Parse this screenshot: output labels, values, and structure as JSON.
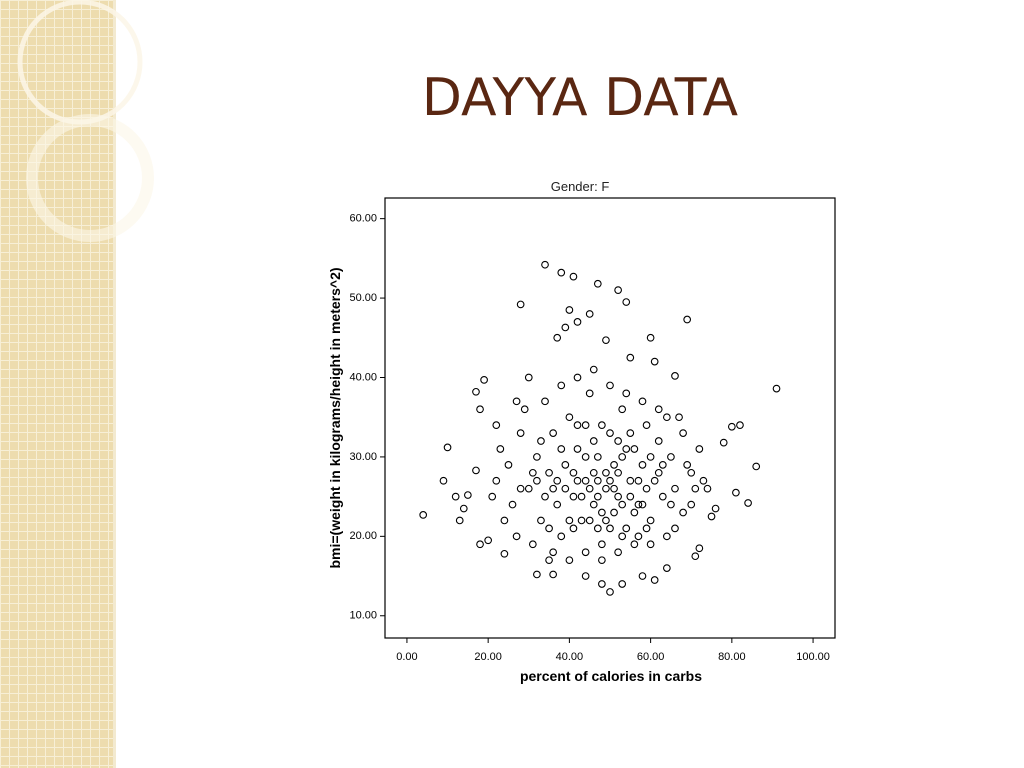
{
  "slide_title": "DAYYA DATA",
  "chart_data": {
    "type": "scatter",
    "title": "Gender: F",
    "x_label": "percent of calories in carbs",
    "y_label": "bmi=(weight in kilograms/height in meters^2)",
    "color": "#000000",
    "xlim": [
      -5.4,
      105.4
    ],
    "ylim": [
      7.2,
      62.6
    ],
    "xticks": [
      {
        "value": 0,
        "label": "0.00"
      },
      {
        "value": 20,
        "label": "20.00"
      },
      {
        "value": 40,
        "label": "40.00"
      },
      {
        "value": 60,
        "label": "60.00"
      },
      {
        "value": 80,
        "label": "80.00"
      },
      {
        "value": 100,
        "label": "100.00"
      }
    ],
    "yticks": [
      {
        "value": 10,
        "label": "10.00"
      },
      {
        "value": 20,
        "label": "20.00"
      },
      {
        "value": 30,
        "label": "30.00"
      },
      {
        "value": 40,
        "label": "40.00"
      },
      {
        "value": 50,
        "label": "50.00"
      },
      {
        "value": 60,
        "label": "60.00"
      }
    ],
    "x": [
      4,
      9,
      10,
      12,
      13,
      14,
      15,
      17,
      18,
      18,
      19,
      17,
      22,
      28,
      34,
      38,
      41,
      47,
      52,
      54,
      40,
      45,
      37,
      39,
      42,
      49,
      60,
      69,
      91,
      86,
      84,
      81,
      80,
      82,
      78,
      75,
      76,
      72,
      71,
      58,
      61,
      50,
      48,
      53,
      44,
      36,
      32,
      20,
      24,
      66,
      61,
      55,
      30,
      27,
      35,
      64,
      30,
      32,
      33,
      35,
      36,
      37,
      38,
      39,
      40,
      41,
      42,
      43,
      44,
      45,
      46,
      47,
      48,
      49,
      50,
      51,
      52,
      53,
      54,
      55,
      56,
      57,
      58,
      59,
      60,
      61,
      62,
      63,
      64,
      65,
      66,
      67,
      68,
      70,
      72,
      74,
      28,
      26,
      25,
      24,
      23,
      22,
      21,
      27,
      29,
      31,
      34,
      36,
      38,
      40,
      42,
      44,
      46,
      48,
      50,
      52,
      54,
      56,
      58,
      60,
      62,
      64,
      66,
      68,
      70,
      45,
      47,
      49,
      51,
      53,
      46,
      48,
      50,
      52,
      44,
      43,
      47,
      49,
      51,
      53,
      55,
      45,
      42,
      57,
      41,
      39,
      59,
      56,
      40,
      54,
      46,
      48,
      50,
      52,
      44,
      58,
      62,
      36,
      34,
      32,
      38,
      42,
      55,
      57,
      60,
      63,
      37,
      33,
      65,
      69,
      71,
      73,
      35,
      41,
      47,
      53,
      59,
      31,
      28
    ],
    "values": [
      22.7,
      27,
      31.2,
      25,
      22,
      23.5,
      25.2,
      28.3,
      19,
      36,
      39.7,
      38.2,
      34,
      49.2,
      54.2,
      53.2,
      52.7,
      51.8,
      51,
      49.5,
      48.5,
      48,
      45,
      46.3,
      47,
      44.7,
      45,
      47.3,
      38.6,
      28.8,
      24.2,
      25.5,
      33.8,
      34,
      31.8,
      22.5,
      23.5,
      18.5,
      17.5,
      15,
      14.5,
      13,
      14,
      14,
      15,
      15.2,
      15.2,
      19.5,
      17.8,
      40.2,
      42,
      42.5,
      40,
      37,
      17,
      16,
      26,
      30,
      22,
      28,
      33,
      24,
      20,
      29,
      35,
      25,
      31,
      22,
      27,
      38,
      24,
      30,
      19,
      26,
      33,
      23,
      28,
      36,
      21,
      27,
      31,
      24,
      29,
      34,
      22,
      27,
      32,
      25,
      20,
      30,
      26,
      35,
      23,
      28,
      31,
      26,
      33,
      24,
      29,
      22,
      31,
      27,
      25,
      20,
      36,
      19,
      37,
      18,
      39,
      17,
      40,
      18,
      41,
      17,
      39,
      18,
      38,
      19,
      37,
      19,
      36,
      35,
      21,
      33,
      24,
      26,
      25,
      28,
      26,
      24,
      28,
      23,
      27,
      25,
      30,
      25,
      27,
      22,
      29,
      30,
      25,
      22,
      27,
      27,
      28,
      26,
      26,
      23,
      22,
      31,
      32,
      34,
      21,
      32,
      34,
      24,
      28,
      26,
      25,
      27,
      31,
      34,
      33,
      20,
      30,
      29,
      27,
      32,
      24,
      29,
      26,
      27,
      21,
      21,
      21,
      20,
      21,
      28,
      26
    ]
  }
}
